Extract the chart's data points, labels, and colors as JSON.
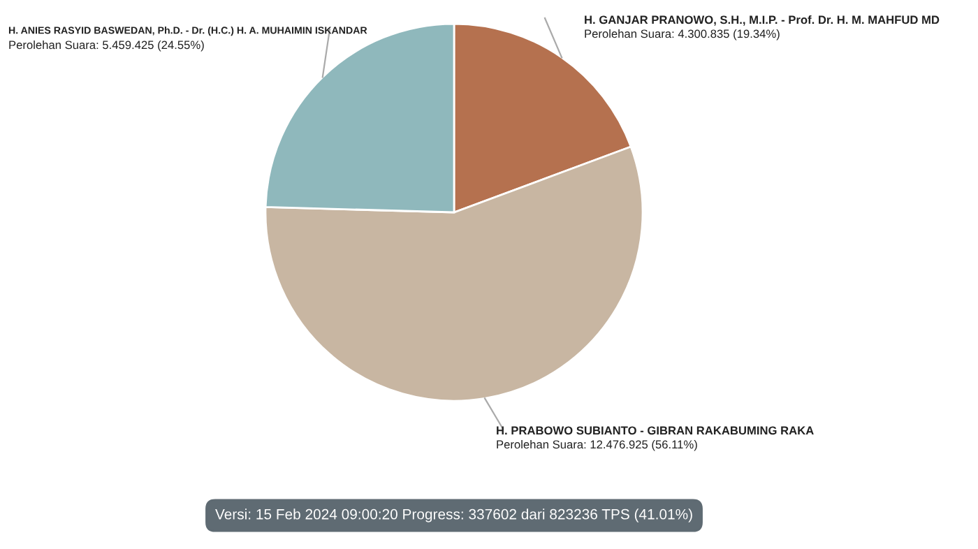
{
  "chart_data": {
    "type": "pie",
    "categories": [
      "H. GANJAR PRANOWO, S.H., M.I.P. - Prof. Dr. H. M. MAHFUD MD",
      "H. PRABOWO SUBIANTO - GIBRAN RAKABUMING RAKA",
      "H. ANIES RASYID BASWEDAN, Ph.D. - Dr. (H.C.) H. A. MUHAIMIN ISKANDAR"
    ],
    "values": [
      4300835,
      12476925,
      5459425
    ],
    "colors": [
      "#b5714f",
      "#c8b6a2",
      "#8fb8bc"
    ],
    "value_labels": [
      "Perolehan Suara: 4.300.835 (19.34%)",
      "Perolehan Suara: 12.476.925 (56.11%)",
      "Perolehan Suara: 5.459.425 (24.55%)"
    ],
    "annotations": [
      "Versi: 15 Feb 2024 09:00:20 Progress: 337602 dari 823236 TPS (41.01%)"
    ]
  }
}
